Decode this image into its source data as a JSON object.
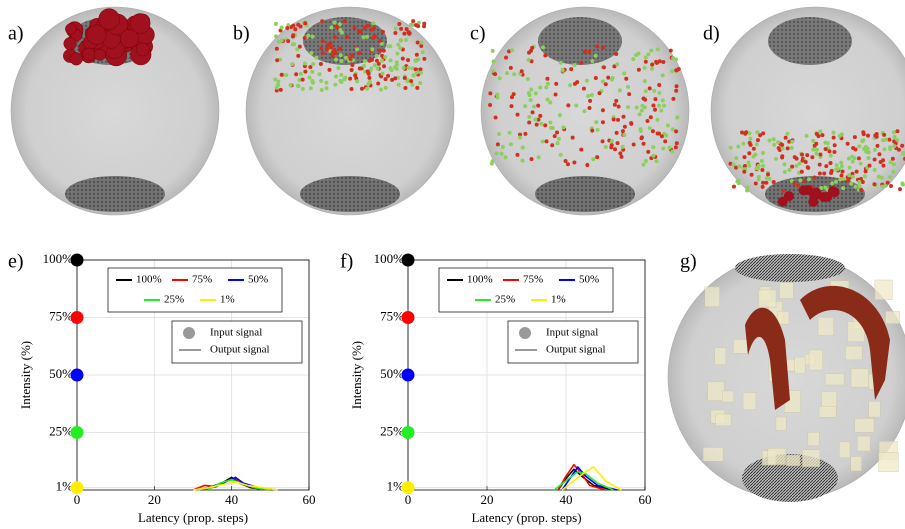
{
  "panels": {
    "labels": [
      "a)",
      "b)",
      "c)",
      "d)",
      "e)",
      "f)",
      "g)"
    ]
  },
  "chart_data": [
    {
      "type": "line",
      "xlabel": "Latency (prop. steps)",
      "ylabel": "Intensity (%)",
      "xlim": [
        0,
        60
      ],
      "xticks": [
        0,
        20,
        40,
        60
      ],
      "ylim": [
        0,
        100
      ],
      "yticks": [
        {
          "value": 1,
          "label": "1%"
        },
        {
          "value": 25,
          "label": "25%"
        },
        {
          "value": 50,
          "label": "50%"
        },
        {
          "value": 75,
          "label": "75%"
        },
        {
          "value": 100,
          "label": "100%"
        }
      ],
      "grid": true,
      "input_latency": 0,
      "input_label": "Input signal",
      "output_label": "Output signal",
      "series": [
        {
          "name": "100%",
          "color": "#000000",
          "input": 100,
          "x": [
            31,
            35,
            38,
            40,
            42,
            45,
            50
          ],
          "values": [
            0,
            1.5,
            3.5,
            5.5,
            3,
            1,
            0
          ]
        },
        {
          "name": "75%",
          "color": "#ff0000",
          "input": 75,
          "x": [
            30,
            33,
            36,
            39,
            41,
            44,
            48
          ],
          "values": [
            0,
            2,
            1.5,
            4,
            5,
            2,
            0
          ]
        },
        {
          "name": "50%",
          "color": "#0000ff",
          "input": 50,
          "x": [
            32,
            36,
            39,
            41,
            43,
            47,
            52
          ],
          "values": [
            0,
            1.5,
            4,
            5.5,
            3,
            1,
            0
          ]
        },
        {
          "name": "25%",
          "color": "#22ee22",
          "input": 25,
          "x": [
            31,
            35,
            37,
            40,
            43,
            46,
            50
          ],
          "values": [
            0,
            1,
            3,
            4.5,
            2.5,
            1,
            0
          ]
        },
        {
          "name": "1%",
          "color": "#ffee00",
          "input": 1,
          "x": [
            30,
            34,
            38,
            41,
            44,
            48,
            52
          ],
          "values": [
            0,
            1,
            2.5,
            3.5,
            2,
            1,
            0
          ]
        }
      ]
    },
    {
      "type": "line",
      "xlabel": "Latency (prop. steps)",
      "ylabel": "Intensity (%)",
      "xlim": [
        0,
        60
      ],
      "xticks": [
        0,
        20,
        40,
        60
      ],
      "ylim": [
        0,
        100
      ],
      "yticks": [
        {
          "value": 1,
          "label": "1%"
        },
        {
          "value": 25,
          "label": "25%"
        },
        {
          "value": 50,
          "label": "50%"
        },
        {
          "value": 75,
          "label": "75%"
        },
        {
          "value": 100,
          "label": "100%"
        }
      ],
      "grid": true,
      "input_latency": 0,
      "input_label": "Input signal",
      "output_label": "Output signal",
      "series": [
        {
          "name": "100%",
          "color": "#000000",
          "input": 100,
          "x": [
            38,
            40,
            42,
            44,
            47,
            52
          ],
          "values": [
            0,
            5,
            9,
            6,
            2,
            0
          ]
        },
        {
          "name": "75%",
          "color": "#ff0000",
          "input": 75,
          "x": [
            38,
            40,
            42,
            44,
            46,
            50
          ],
          "values": [
            0,
            6,
            11,
            7,
            2,
            0
          ]
        },
        {
          "name": "50%",
          "color": "#0000ff",
          "input": 50,
          "x": [
            39,
            41,
            43,
            45,
            48,
            53
          ],
          "values": [
            0,
            5,
            10,
            6,
            2,
            0
          ]
        },
        {
          "name": "25%",
          "color": "#22ee22",
          "input": 25,
          "x": [
            37,
            40,
            43,
            45,
            48,
            52
          ],
          "values": [
            0,
            4,
            8,
            7,
            3,
            0
          ]
        },
        {
          "name": "1%",
          "color": "#ffee00",
          "input": 1,
          "x": [
            39,
            42,
            45,
            47,
            50,
            54
          ],
          "values": [
            0,
            4,
            8,
            10,
            4,
            0
          ]
        }
      ]
    }
  ]
}
